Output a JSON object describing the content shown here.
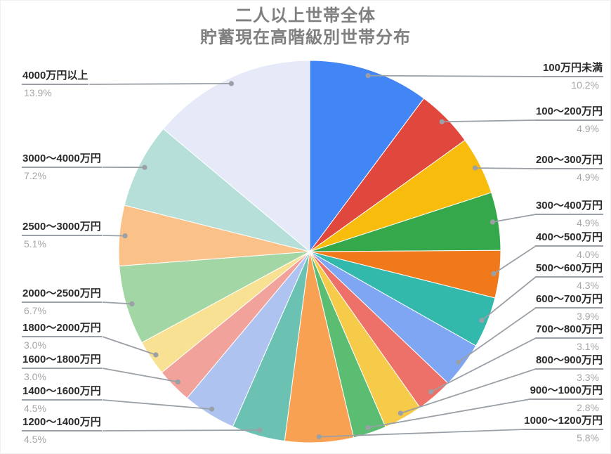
{
  "title": {
    "line1": "二人以上世帯全体",
    "line2": "貯蓄現在高階級別世帯分布"
  },
  "chart_data": {
    "type": "pie",
    "title": "二人以上世帯全体 貯蓄現在高階級別世帯分布",
    "unit": "%",
    "start_angle_deg": 0,
    "direction": "clockwise",
    "legend_position": "outside-callout-labels",
    "slices": [
      {
        "label": "100万円未満",
        "value": 10.2,
        "color": "#4285F4"
      },
      {
        "label": "100〜200万円",
        "value": 4.9,
        "color": "#E0483D"
      },
      {
        "label": "200〜300万円",
        "value": 4.9,
        "color": "#F8BC0C"
      },
      {
        "label": "300〜400万円",
        "value": 4.9,
        "color": "#35A84C"
      },
      {
        "label": "400〜500万円",
        "value": 4.0,
        "color": "#F0791B"
      },
      {
        "label": "500〜600万円",
        "value": 4.3,
        "color": "#33B8AC"
      },
      {
        "label": "600〜700万円",
        "value": 3.9,
        "color": "#7FA6F2"
      },
      {
        "label": "700〜800万円",
        "value": 3.1,
        "color": "#ED7168"
      },
      {
        "label": "800〜900万円",
        "value": 3.3,
        "color": "#F6CB4A"
      },
      {
        "label": "900〜1000万円",
        "value": 2.8,
        "color": "#5BBD72"
      },
      {
        "label": "1000〜1200万円",
        "value": 5.8,
        "color": "#F9A152"
      },
      {
        "label": "1200〜1400万円",
        "value": 4.5,
        "color": "#6BC2B3"
      },
      {
        "label": "1400〜1600万円",
        "value": 4.5,
        "color": "#AEC3F0"
      },
      {
        "label": "1600〜1800万円",
        "value": 3.0,
        "color": "#F1A29A"
      },
      {
        "label": "1800〜2000万円",
        "value": 3.0,
        "color": "#F8E193"
      },
      {
        "label": "2000〜2500万円",
        "value": 6.7,
        "color": "#A2D6A4"
      },
      {
        "label": "2500〜3000万円",
        "value": 5.1,
        "color": "#FAC289"
      },
      {
        "label": "3000〜4000万円",
        "value": 7.2,
        "color": "#B5DFD8"
      },
      {
        "label": "4000万円以上",
        "value": 13.9,
        "color": "#E6EAF8"
      }
    ]
  },
  "style": {
    "title_color": "#7f7f7f",
    "label_color": "#2b2b2b",
    "pct_color": "#a6a6a6",
    "leader_color": "#9aa0a6",
    "slice_stroke": "#ffffff",
    "background": "#ffffff"
  }
}
